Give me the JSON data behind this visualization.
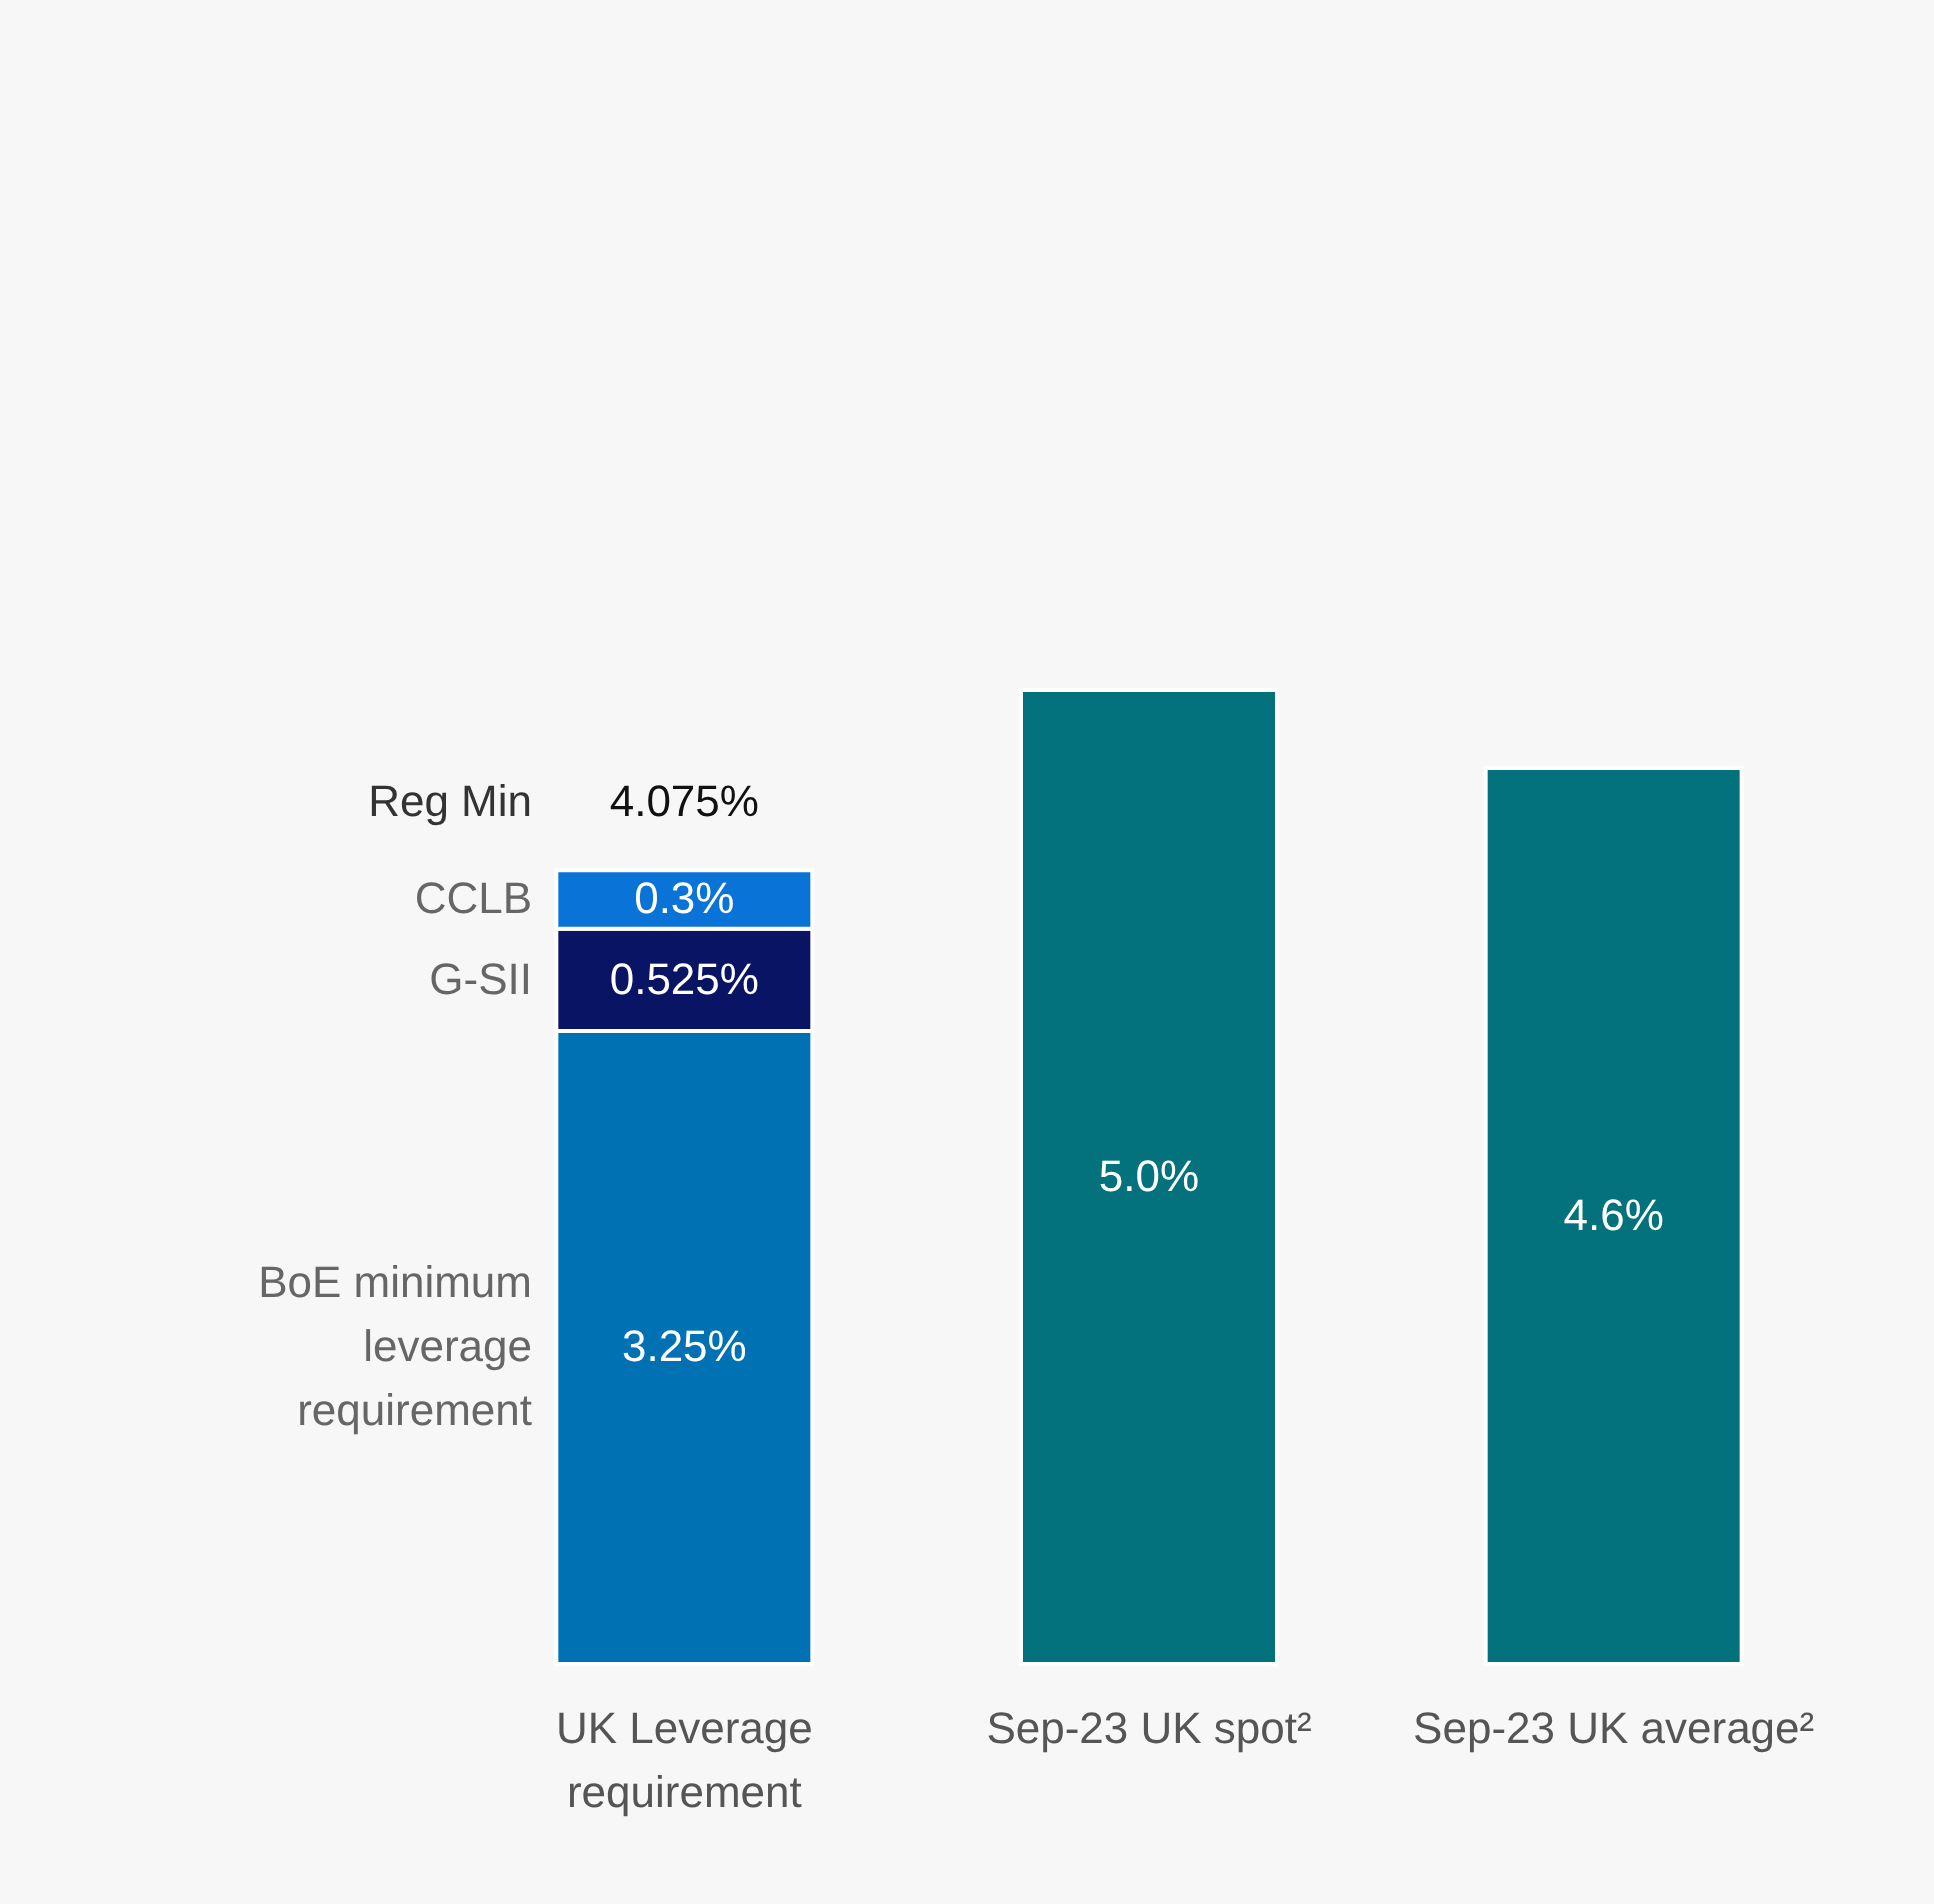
{
  "chart_data": {
    "type": "bar",
    "stacked": true,
    "categories": [
      "UK Leverage requirement",
      "Sep-23 UK spot²",
      "Sep-23 UK average²"
    ],
    "series": [
      {
        "name": "BoE minimum leverage requirement",
        "color": "#0071b3",
        "values": [
          3.25,
          null,
          null
        ],
        "value_labels": [
          "3.25%",
          null,
          null
        ]
      },
      {
        "name": "G-SII",
        "color": "#0a1464",
        "values": [
          0.525,
          null,
          null
        ],
        "value_labels": [
          "0.525%",
          null,
          null
        ]
      },
      {
        "name": "CCLB",
        "color": "#0a73d8",
        "values": [
          0.3,
          null,
          null
        ],
        "value_labels": [
          "0.3%",
          null,
          null
        ]
      },
      {
        "color": "#03727c",
        "values": [
          null,
          5.0,
          4.6
        ],
        "value_labels": [
          null,
          "5.0%",
          "4.6%"
        ]
      }
    ],
    "totals": [
      "4.075%",
      null,
      null
    ],
    "annotations": [
      "Reg Min"
    ]
  }
}
